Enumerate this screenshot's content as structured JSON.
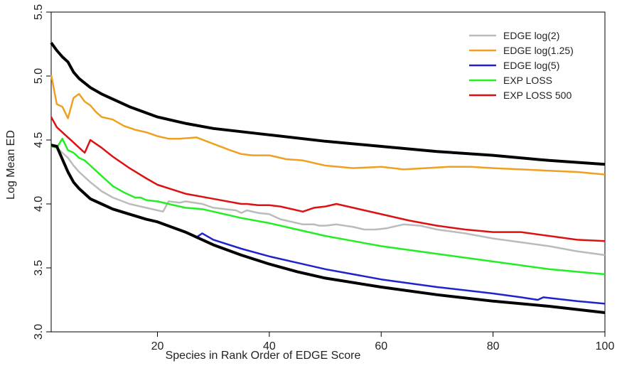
{
  "chart_data": {
    "type": "line",
    "title": "",
    "xlabel": "Species in Rank Order of EDGE Score",
    "ylabel": "Log Mean ED",
    "xlim": [
      1,
      100
    ],
    "ylim": [
      3.0,
      5.5
    ],
    "xticks": [
      20,
      40,
      60,
      80,
      100
    ],
    "yticks": [
      3.0,
      3.5,
      4.0,
      4.5,
      5.0,
      5.5
    ],
    "xtick_labels": [
      "20",
      "40",
      "60",
      "80",
      "100"
    ],
    "ytick_labels": [
      "3.0",
      "3.5",
      "4.0",
      "4.5",
      "5.0",
      "5.5"
    ],
    "grid": false,
    "legend_position": "top-right",
    "envelope": [
      {
        "x": [
          1,
          2,
          3,
          4,
          5,
          6,
          8,
          10,
          12,
          15,
          20,
          25,
          30,
          40,
          50,
          60,
          70,
          80,
          90,
          100
        ],
        "y": [
          5.26,
          5.2,
          5.15,
          5.11,
          5.03,
          4.98,
          4.91,
          4.86,
          4.82,
          4.76,
          4.68,
          4.63,
          4.59,
          4.54,
          4.49,
          4.45,
          4.41,
          4.38,
          4.34,
          4.31
        ],
        "color": "#000000"
      },
      {
        "x": [
          1,
          2,
          3,
          4,
          5,
          6,
          7,
          8,
          10,
          12,
          15,
          18,
          20,
          25,
          27,
          30,
          35,
          40,
          45,
          50,
          60,
          70,
          80,
          90,
          100
        ],
        "y": [
          4.46,
          4.45,
          4.35,
          4.25,
          4.17,
          4.12,
          4.08,
          4.04,
          4.0,
          3.96,
          3.92,
          3.88,
          3.86,
          3.78,
          3.74,
          3.68,
          3.6,
          3.53,
          3.47,
          3.42,
          3.35,
          3.29,
          3.24,
          3.2,
          3.15
        ],
        "color": "#000000"
      }
    ],
    "series": [
      {
        "name": "EDGE log(2)",
        "color": "#bbbbbb",
        "x": [
          1,
          2,
          3,
          4,
          5,
          6,
          8,
          10,
          12,
          15,
          17,
          20,
          21,
          22,
          24,
          25,
          28,
          30,
          32,
          34,
          35,
          36,
          38,
          40,
          42,
          44,
          46,
          48,
          49,
          50,
          52,
          55,
          57,
          59,
          61,
          64,
          67,
          70,
          75,
          80,
          85,
          90,
          95,
          100
        ],
        "y": [
          4.46,
          4.44,
          4.4,
          4.36,
          4.3,
          4.25,
          4.17,
          4.1,
          4.05,
          4.0,
          3.98,
          3.95,
          3.94,
          4.02,
          4.01,
          4.02,
          4.0,
          3.97,
          3.96,
          3.95,
          3.93,
          3.95,
          3.93,
          3.92,
          3.88,
          3.86,
          3.84,
          3.84,
          3.83,
          3.83,
          3.84,
          3.82,
          3.8,
          3.8,
          3.81,
          3.84,
          3.83,
          3.8,
          3.77,
          3.73,
          3.7,
          3.67,
          3.63,
          3.6
        ]
      },
      {
        "name": "EDGE log(1.25)",
        "color": "#f0a020",
        "x": [
          1,
          2,
          3,
          4,
          5,
          6,
          7,
          8,
          9,
          10,
          12,
          14,
          16,
          18,
          20,
          22,
          24,
          27,
          30,
          33,
          35,
          37,
          40,
          43,
          46,
          50,
          55,
          60,
          64,
          68,
          72,
          76,
          80,
          85,
          90,
          95,
          100
        ],
        "y": [
          5.01,
          4.78,
          4.76,
          4.67,
          4.83,
          4.86,
          4.8,
          4.77,
          4.72,
          4.68,
          4.66,
          4.61,
          4.58,
          4.56,
          4.53,
          4.51,
          4.51,
          4.52,
          4.47,
          4.42,
          4.39,
          4.38,
          4.38,
          4.35,
          4.34,
          4.3,
          4.28,
          4.29,
          4.27,
          4.28,
          4.29,
          4.29,
          4.28,
          4.27,
          4.26,
          4.25,
          4.23
        ]
      },
      {
        "name": "EDGE log(5)",
        "color": "#2222cc",
        "x": [
          27,
          28,
          30,
          35,
          40,
          45,
          50,
          60,
          70,
          80,
          85,
          88,
          89,
          95,
          100
        ],
        "y": [
          3.74,
          3.77,
          3.72,
          3.65,
          3.59,
          3.54,
          3.49,
          3.41,
          3.35,
          3.3,
          3.27,
          3.25,
          3.27,
          3.24,
          3.22
        ]
      },
      {
        "name": "EXP LOSS",
        "color": "#22ee22",
        "x": [
          1,
          2,
          3,
          4,
          5,
          6,
          7,
          8,
          10,
          12,
          14,
          16,
          17,
          18,
          20,
          22,
          25,
          28,
          30,
          35,
          40,
          45,
          50,
          55,
          60,
          70,
          80,
          90,
          100
        ],
        "y": [
          4.45,
          4.44,
          4.51,
          4.42,
          4.4,
          4.36,
          4.34,
          4.3,
          4.22,
          4.14,
          4.09,
          4.05,
          4.05,
          4.03,
          4.02,
          4.0,
          3.97,
          3.96,
          3.94,
          3.89,
          3.85,
          3.8,
          3.75,
          3.71,
          3.67,
          3.61,
          3.55,
          3.49,
          3.45
        ]
      },
      {
        "name": "EXP LOSS 500",
        "color": "#dd1111",
        "x": [
          1,
          2,
          3,
          4,
          5,
          6,
          7,
          8,
          10,
          12,
          15,
          18,
          20,
          25,
          30,
          35,
          36,
          38,
          39,
          40,
          42,
          46,
          48,
          50,
          52,
          55,
          60,
          65,
          70,
          75,
          80,
          82,
          83,
          85,
          90,
          95,
          100
        ],
        "y": [
          4.68,
          4.6,
          4.56,
          4.52,
          4.48,
          4.44,
          4.4,
          4.5,
          4.44,
          4.37,
          4.28,
          4.2,
          4.15,
          4.08,
          4.04,
          4.0,
          4.0,
          3.99,
          3.99,
          3.99,
          3.98,
          3.94,
          3.97,
          3.98,
          4.0,
          3.97,
          3.92,
          3.87,
          3.83,
          3.8,
          3.78,
          3.78,
          3.78,
          3.78,
          3.75,
          3.72,
          3.71
        ]
      }
    ]
  }
}
